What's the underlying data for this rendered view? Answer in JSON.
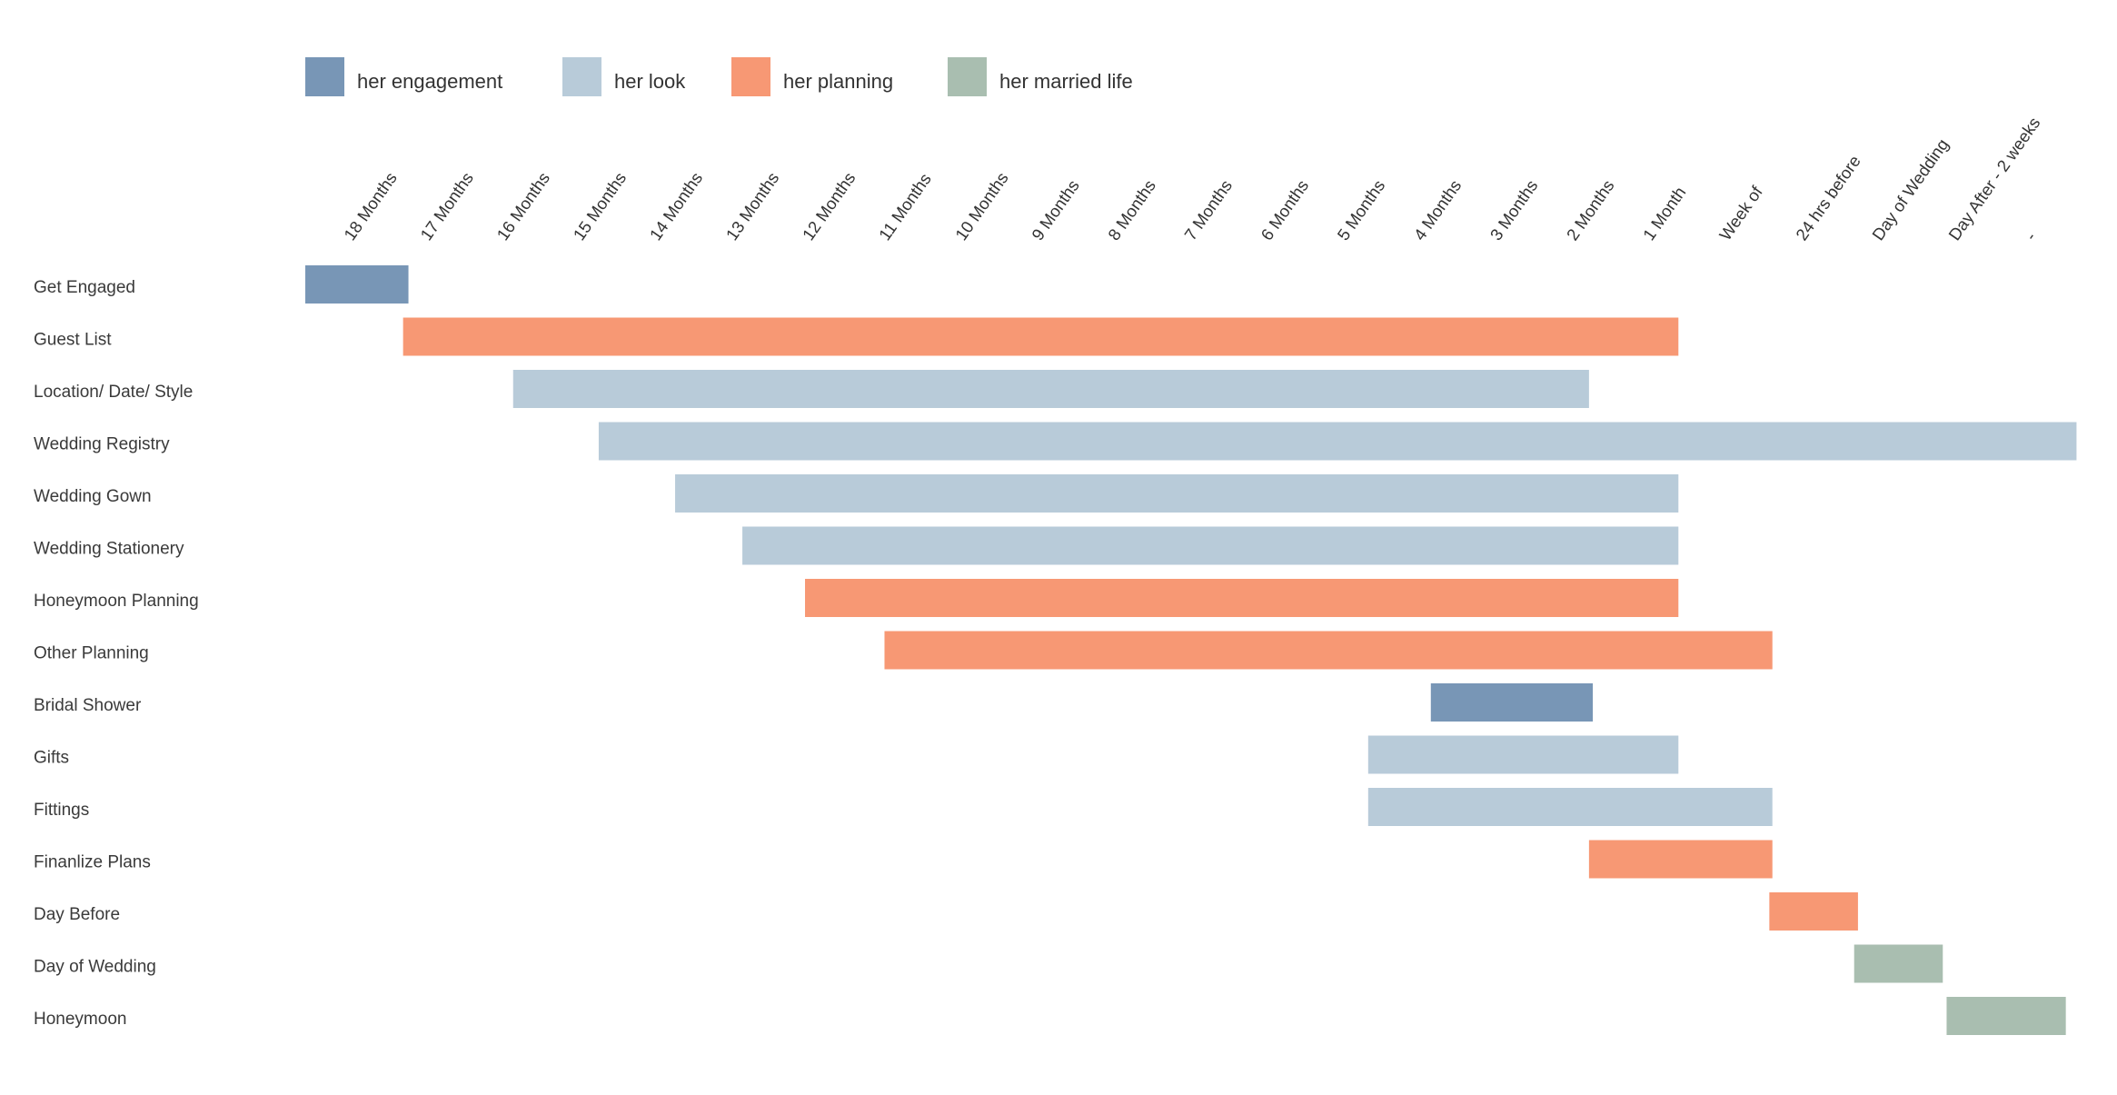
{
  "chart_data": {
    "type": "gantt",
    "legend": [
      {
        "key": "engagement",
        "label": "her engagement",
        "color": "#7896b6"
      },
      {
        "key": "look",
        "label": "her look",
        "color": "#b8cbd9"
      },
      {
        "key": "planning",
        "label": "her planning",
        "color": "#f79874"
      },
      {
        "key": "married",
        "label": "her married life",
        "color": "#a9beb0"
      }
    ],
    "timeline": [
      "18 Months",
      "17 Months",
      "16 Months",
      "15 Months",
      "14 Months",
      "13 Months",
      "12 Months",
      "11 Months",
      "10 Months",
      "9 Months",
      "8 Months",
      "7 Months",
      "6 Months",
      "5 Months",
      "4 Months",
      "3 Months",
      "2 Months",
      "1 Month",
      "Week of",
      "24 hrs before",
      "Day of Wedding",
      "Day After - 2 weeks",
      "-"
    ],
    "tasks": [
      {
        "label": "Get Engaged",
        "category": "engagement",
        "start": 0.0,
        "end": 1.35
      },
      {
        "label": "Guest List",
        "category": "planning",
        "start": 1.28,
        "end": 17.97
      },
      {
        "label": "Location/ Date/ Style",
        "category": "look",
        "start": 2.72,
        "end": 16.8
      },
      {
        "label": "Wedding Registry",
        "category": "look",
        "start": 3.84,
        "end": 23.18
      },
      {
        "label": "Wedding Gown",
        "category": "look",
        "start": 4.84,
        "end": 17.97
      },
      {
        "label": "Wedding Stationery",
        "category": "look",
        "start": 5.72,
        "end": 17.97
      },
      {
        "label": "Honeymoon Planning",
        "category": "planning",
        "start": 6.54,
        "end": 17.97
      },
      {
        "label": "Other Planning",
        "category": "planning",
        "start": 7.58,
        "end": 19.2
      },
      {
        "label": "Bridal Shower",
        "category": "engagement",
        "start": 14.73,
        "end": 16.85
      },
      {
        "label": "Gifts",
        "category": "look",
        "start": 13.91,
        "end": 17.97
      },
      {
        "label": "Fittings",
        "category": "look",
        "start": 13.91,
        "end": 19.2
      },
      {
        "label": "Finanlize Plans",
        "category": "planning",
        "start": 16.8,
        "end": 19.2
      },
      {
        "label": "Day Before",
        "category": "planning",
        "start": 19.16,
        "end": 20.32
      },
      {
        "label": "Day of Wedding",
        "category": "married",
        "start": 20.27,
        "end": 21.43
      },
      {
        "label": "Honeymoon",
        "category": "married",
        "start": 21.48,
        "end": 23.04
      }
    ]
  }
}
